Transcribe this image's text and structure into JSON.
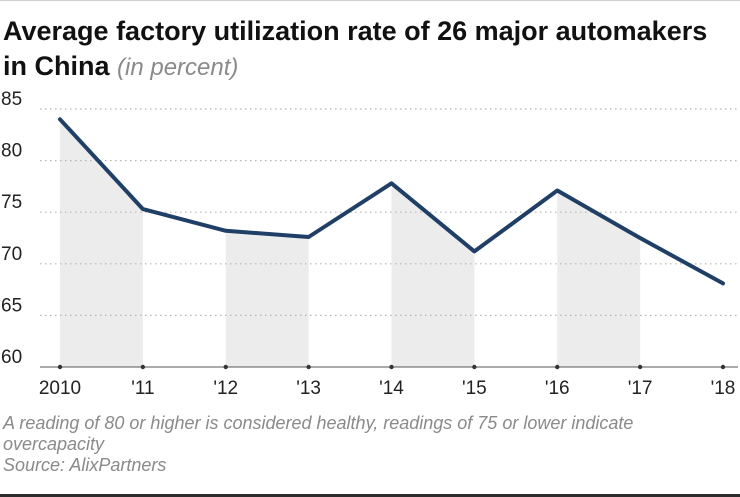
{
  "header": {
    "title": "Average factory utilization rate of 26 major automakers in China",
    "unit": "(in percent)"
  },
  "footer": {
    "note": "A reading of 80 or higher is considered healthy, readings of 75 or lower indicate overcapacity",
    "source": "Source: AlixPartners"
  },
  "colors": {
    "line": "#1f3f66",
    "band": "#ececec",
    "grid": "#b5b5b5",
    "text": "#222222"
  },
  "chart_data": {
    "type": "line",
    "title": "Average factory utilization rate of 26 major automakers in China",
    "xlabel": "",
    "ylabel": "in percent",
    "categories": [
      "2010",
      "'11",
      "'12",
      "'13",
      "'14",
      "'15",
      "'16",
      "'17",
      "'18"
    ],
    "series": [
      {
        "name": "Factory utilization rate",
        "values": [
          84,
          75.3,
          73.2,
          72.6,
          77.8,
          71.2,
          77.1,
          72.5,
          68.1
        ]
      }
    ],
    "yticks": [
      60,
      65,
      70,
      75,
      80,
      85
    ],
    "ylim": [
      60,
      85
    ],
    "grid": true,
    "shaded_intervals": [
      [
        0,
        1
      ],
      [
        2,
        3
      ],
      [
        4,
        5
      ],
      [
        6,
        7
      ]
    ]
  }
}
